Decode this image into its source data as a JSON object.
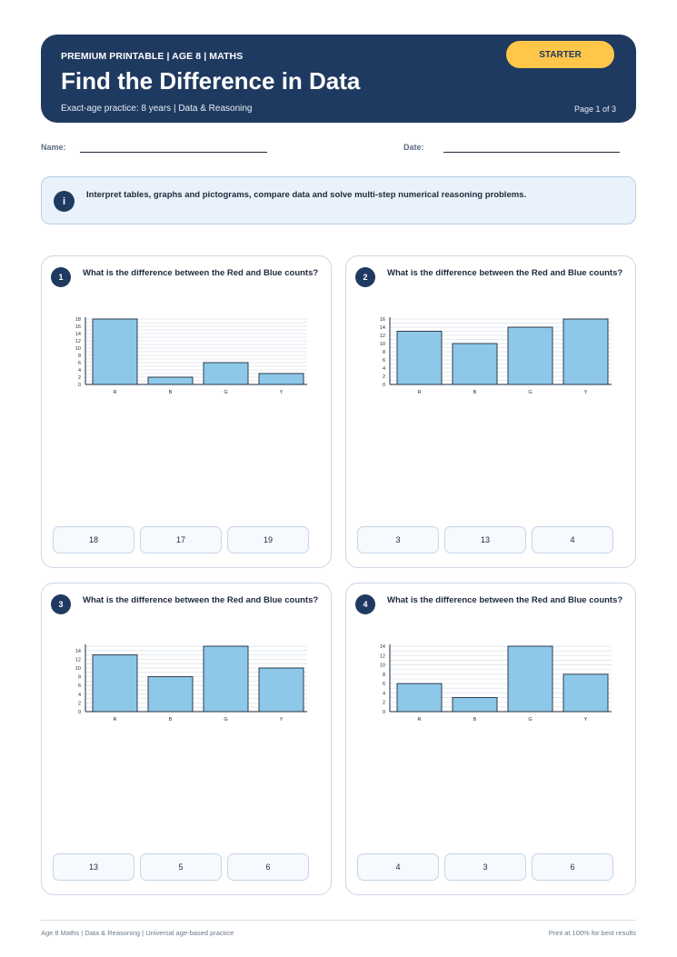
{
  "header": {
    "kicker": "PREMIUM PRINTABLE | AGE 8 | MATHS",
    "title": "Find the Difference in Data",
    "subtitle": "Exact-age practice: 8 years | Data & Reasoning",
    "page": "Page 1 of 3",
    "badge": "STARTER"
  },
  "fields": {
    "name_label": "Name:",
    "date_label": "Date:"
  },
  "info": {
    "icon": "i",
    "text": "Interpret tables, graphs and pictograms, compare data and solve multi-step numerical reasoning problems."
  },
  "questions": [
    {
      "number": "1",
      "text": "What is the difference between the Red and Blue counts?",
      "answers": [
        "18",
        "17",
        "19"
      ],
      "chart_data": {
        "type": "bar",
        "categories": [
          "R",
          "B",
          "G",
          "Y"
        ],
        "values": [
          18,
          2,
          6,
          3
        ],
        "yticks": [
          "0",
          "2",
          "4",
          "6",
          "8",
          "10",
          "12",
          "14",
          "16",
          "18"
        ],
        "ylim": [
          0,
          18
        ],
        "grid": true
      }
    },
    {
      "number": "2",
      "text": "What is the difference between the Red and Blue counts?",
      "answers": [
        "3",
        "13",
        "4"
      ],
      "chart_data": {
        "type": "bar",
        "categories": [
          "R",
          "B",
          "G",
          "Y"
        ],
        "values": [
          13,
          10,
          14,
          16
        ],
        "yticks": [
          "0",
          "2",
          "4",
          "6",
          "8",
          "10",
          "12",
          "14",
          "16"
        ],
        "ylim": [
          0,
          16
        ],
        "grid": true
      }
    },
    {
      "number": "3",
      "text": "What is the difference between the Red and Blue counts?",
      "answers": [
        "13",
        "5",
        "6"
      ],
      "chart_data": {
        "type": "bar",
        "categories": [
          "R",
          "B",
          "G",
          "Y"
        ],
        "values": [
          13,
          8,
          15,
          10
        ],
        "yticks": [
          "0",
          "2",
          "4",
          "6",
          "8",
          "10",
          "12",
          "14"
        ],
        "ylim": [
          0,
          15
        ],
        "grid": true
      }
    },
    {
      "number": "4",
      "text": "What is the difference between the Red and Blue counts?",
      "answers": [
        "4",
        "3",
        "6"
      ],
      "chart_data": {
        "type": "bar",
        "categories": [
          "R",
          "B",
          "G",
          "Y"
        ],
        "values": [
          6,
          3,
          14,
          8
        ],
        "yticks": [
          "0",
          "2",
          "4",
          "6",
          "8",
          "10",
          "12",
          "14"
        ],
        "ylim": [
          0,
          14
        ],
        "grid": true
      }
    }
  ],
  "footer": {
    "left": "Age 8 Maths | Data & Reasoning | Universal age-based practice",
    "right": "Print at 100% for best results"
  },
  "colors": {
    "header_bg": "#1f3a60",
    "badge_bg": "#ffc64a",
    "bar_fill": "#8ec8e8",
    "info_bg": "#e9f1fb"
  }
}
